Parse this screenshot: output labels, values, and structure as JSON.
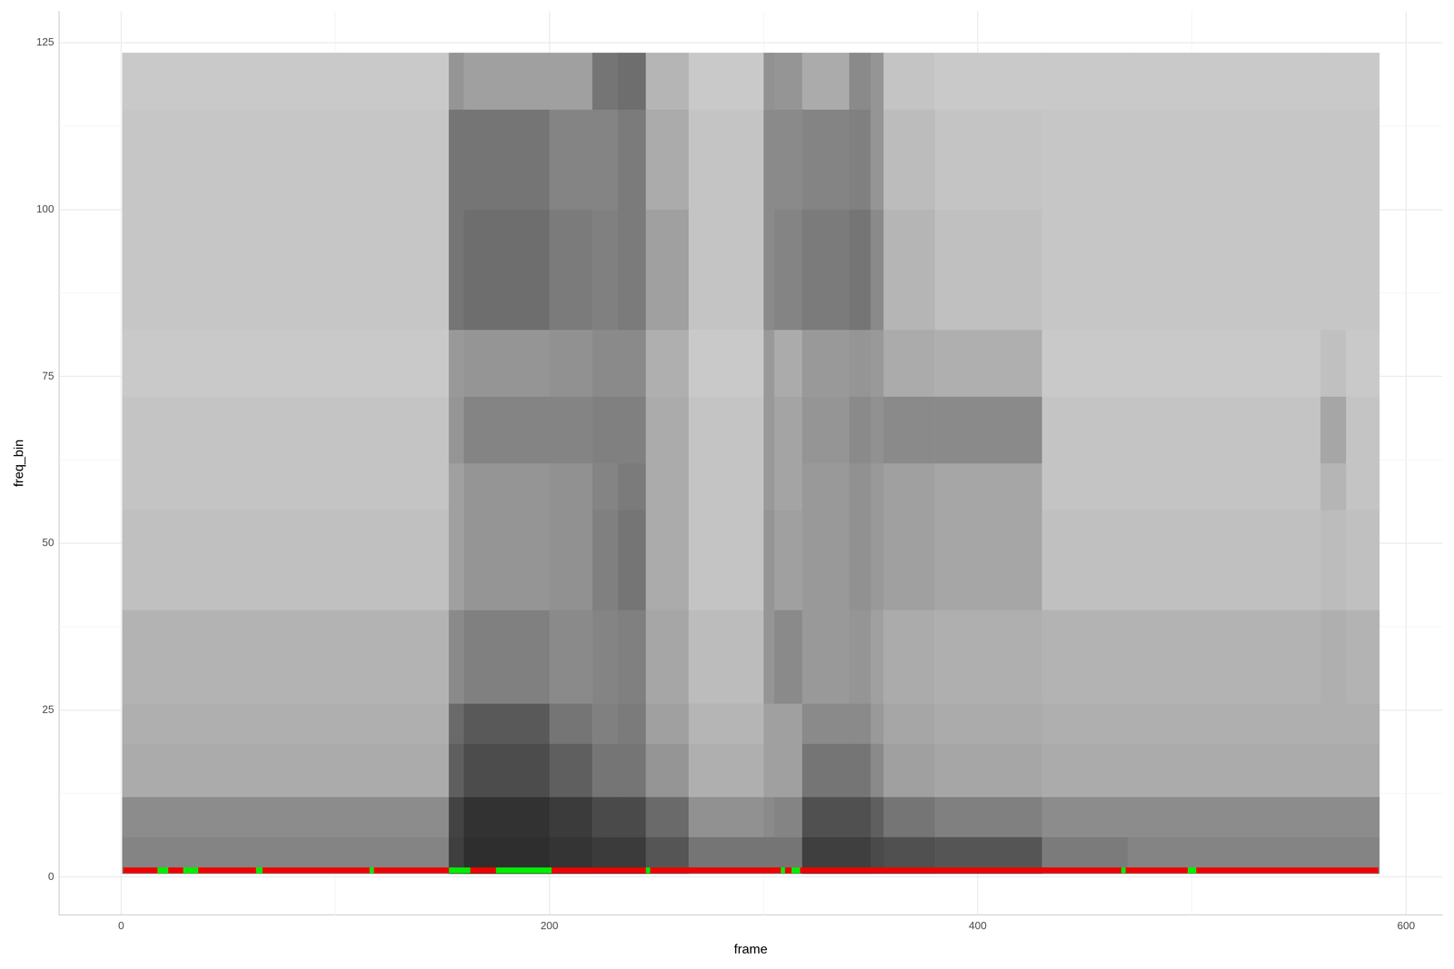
{
  "chart_data": {
    "type": "heatmap",
    "x_label": "frame",
    "y_label": "freq_bin",
    "xlim": [
      -29,
      617
    ],
    "ylim": [
      -5.7,
      129.7
    ],
    "xticks": [
      0,
      200,
      400,
      600
    ],
    "yticks": [
      0,
      25,
      50,
      75,
      100,
      125
    ],
    "grid": true,
    "zlim": [
      0,
      100
    ],
    "x_edges": [
      0.5,
      153,
      160,
      200,
      220,
      232,
      245,
      265,
      300,
      305,
      318,
      340,
      350,
      356,
      380,
      430,
      470,
      560,
      572,
      587.5
    ],
    "y_edges": [
      0.5,
      6,
      12,
      20,
      26,
      40,
      55,
      62,
      72,
      82,
      100,
      115,
      123.5
    ],
    "cells": [
      [
        48,
        80,
        88,
        85,
        82,
        82,
        70,
        55,
        55,
        55,
        80,
        80,
        75,
        72,
        70,
        52,
        48,
        48,
        48
      ],
      [
        44,
        78,
        86,
        82,
        75,
        75,
        60,
        42,
        45,
        48,
        72,
        72,
        65,
        55,
        50,
        44,
        44,
        44,
        44
      ],
      [
        30,
        65,
        74,
        65,
        55,
        55,
        40,
        28,
        35,
        35,
        55,
        55,
        45,
        35,
        32,
        30,
        30,
        30,
        30
      ],
      [
        28,
        60,
        68,
        55,
        50,
        52,
        35,
        25,
        35,
        35,
        45,
        45,
        38,
        32,
        30,
        28,
        28,
        28,
        28
      ],
      [
        26,
        45,
        50,
        45,
        48,
        50,
        32,
        22,
        40,
        45,
        38,
        40,
        35,
        30,
        28,
        26,
        26,
        28,
        26
      ],
      [
        20,
        35,
        40,
        42,
        50,
        55,
        30,
        18,
        40,
        35,
        38,
        42,
        38,
        35,
        32,
        20,
        20,
        22,
        20
      ],
      [
        18,
        35,
        40,
        42,
        48,
        52,
        30,
        18,
        38,
        33,
        38,
        42,
        38,
        35,
        32,
        18,
        18,
        25,
        18
      ],
      [
        18,
        40,
        48,
        48,
        50,
        50,
        30,
        18,
        38,
        33,
        40,
        45,
        42,
        45,
        45,
        18,
        18,
        32,
        18
      ],
      [
        16,
        38,
        40,
        42,
        45,
        45,
        28,
        16,
        38,
        30,
        38,
        40,
        38,
        30,
        28,
        16,
        16,
        20,
        16
      ],
      [
        17,
        55,
        58,
        52,
        50,
        52,
        35,
        18,
        45,
        48,
        52,
        55,
        45,
        25,
        20,
        17,
        17,
        17,
        17
      ],
      [
        17,
        55,
        55,
        48,
        48,
        52,
        30,
        18,
        45,
        45,
        48,
        50,
        40,
        22,
        18,
        17,
        17,
        17,
        17
      ],
      [
        16,
        40,
        35,
        35,
        55,
        58,
        25,
        16,
        42,
        40,
        30,
        45,
        40,
        18,
        16,
        16,
        16,
        16,
        16
      ]
    ],
    "marker_line": {
      "y": 1,
      "segments": [
        {
          "start": 1,
          "end": 17,
          "color": "#ee0000"
        },
        {
          "start": 17,
          "end": 22,
          "color": "#00ee00"
        },
        {
          "start": 22,
          "end": 29,
          "color": "#ee0000"
        },
        {
          "start": 29,
          "end": 36,
          "color": "#00ee00"
        },
        {
          "start": 36,
          "end": 63,
          "color": "#ee0000"
        },
        {
          "start": 63,
          "end": 66,
          "color": "#00ee00"
        },
        {
          "start": 66,
          "end": 116,
          "color": "#ee0000"
        },
        {
          "start": 116,
          "end": 118,
          "color": "#00ee00"
        },
        {
          "start": 118,
          "end": 153,
          "color": "#ee0000"
        },
        {
          "start": 153,
          "end": 163,
          "color": "#00ee00"
        },
        {
          "start": 163,
          "end": 175,
          "color": "#ee0000"
        },
        {
          "start": 175,
          "end": 201,
          "color": "#00ee00"
        },
        {
          "start": 201,
          "end": 245,
          "color": "#ee0000"
        },
        {
          "start": 245,
          "end": 247,
          "color": "#00ee00"
        },
        {
          "start": 247,
          "end": 308,
          "color": "#ee0000"
        },
        {
          "start": 308,
          "end": 310,
          "color": "#00ee00"
        },
        {
          "start": 310,
          "end": 313,
          "color": "#ee0000"
        },
        {
          "start": 313,
          "end": 317,
          "color": "#00ee00"
        },
        {
          "start": 317,
          "end": 467,
          "color": "#ee0000"
        },
        {
          "start": 467,
          "end": 469,
          "color": "#00ee00"
        },
        {
          "start": 469,
          "end": 498,
          "color": "#ee0000"
        },
        {
          "start": 498,
          "end": 502,
          "color": "#00ee00"
        },
        {
          "start": 502,
          "end": 587,
          "color": "#ee0000"
        }
      ]
    }
  }
}
